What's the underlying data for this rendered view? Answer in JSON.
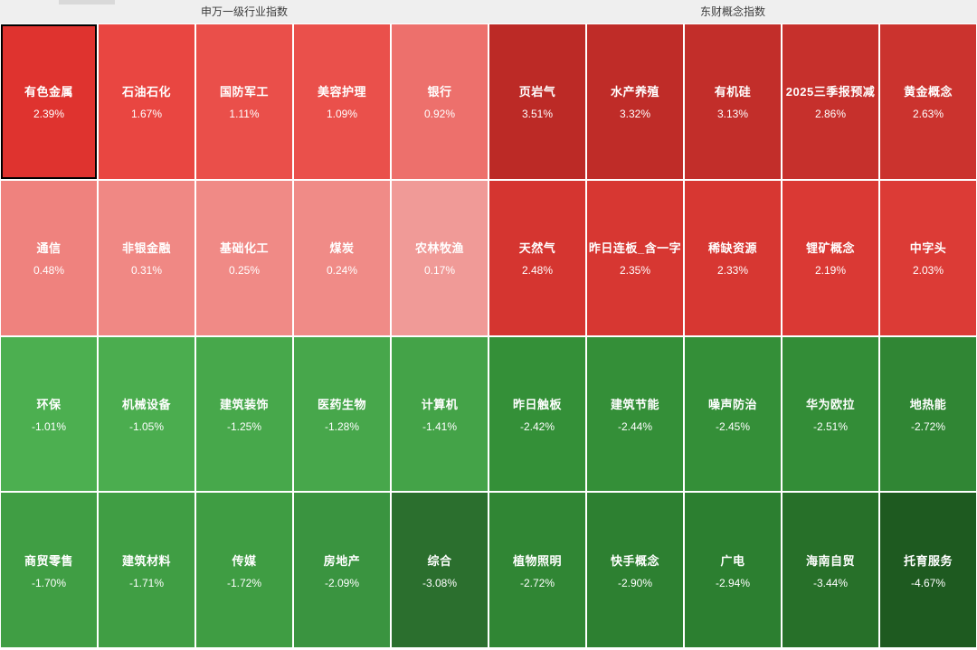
{
  "page": {
    "background": "#ffffff",
    "header_background": "#efefef",
    "header_text_color": "#3c3c3c",
    "positive_accent": "#df332f",
    "negative_accent": "#2b6f2e",
    "selected_cell_border": "#000000"
  },
  "sections": [
    {
      "title": "申万一级行业指数"
    },
    {
      "title": "东财概念指数"
    }
  ],
  "grid": {
    "columns": 10,
    "rows": [
      [
        {
          "label": "有色金属",
          "change": "2.39%",
          "color": "#df332f",
          "selected": true
        },
        {
          "label": "石油石化",
          "change": "1.67%",
          "color": "#e94641",
          "selected": false
        },
        {
          "label": "国防军工",
          "change": "1.11%",
          "color": "#ea4f4a",
          "selected": false
        },
        {
          "label": "美容护理",
          "change": "1.09%",
          "color": "#ea504b",
          "selected": false
        },
        {
          "label": "银行",
          "change": "0.92%",
          "color": "#ed706c",
          "selected": false
        },
        {
          "label": "页岩气",
          "change": "3.51%",
          "color": "#bc2a26",
          "selected": false
        },
        {
          "label": "水产养殖",
          "change": "3.32%",
          "color": "#bf2c28",
          "selected": false
        },
        {
          "label": "有机硅",
          "change": "3.13%",
          "color": "#c22e2a",
          "selected": false
        },
        {
          "label": "2025三季报预减",
          "change": "2.86%",
          "color": "#c6302c",
          "selected": false
        },
        {
          "label": "黄金概念",
          "change": "2.63%",
          "color": "#cb332e",
          "selected": false
        }
      ],
      [
        {
          "label": "通信",
          "change": "0.48%",
          "color": "#ef827e",
          "selected": false
        },
        {
          "label": "非银金融",
          "change": "0.31%",
          "color": "#f08884",
          "selected": false
        },
        {
          "label": "基础化工",
          "change": "0.25%",
          "color": "#f08a86",
          "selected": false
        },
        {
          "label": "煤炭",
          "change": "0.24%",
          "color": "#f08b87",
          "selected": false
        },
        {
          "label": "农林牧渔",
          "change": "0.17%",
          "color": "#f09a97",
          "selected": false
        },
        {
          "label": "天然气",
          "change": "2.48%",
          "color": "#d53530",
          "selected": false
        },
        {
          "label": "昨日连板_含一字",
          "change": "2.35%",
          "color": "#d73732",
          "selected": false
        },
        {
          "label": "稀缺资源",
          "change": "2.33%",
          "color": "#d73732",
          "selected": false
        },
        {
          "label": "锂矿概念",
          "change": "2.19%",
          "color": "#da3934",
          "selected": false
        },
        {
          "label": "中字头",
          "change": "2.03%",
          "color": "#dc3b36",
          "selected": false
        }
      ],
      [
        {
          "label": "环保",
          "change": "-1.01%",
          "color": "#4caf50",
          "selected": false
        },
        {
          "label": "机械设备",
          "change": "-1.05%",
          "color": "#4bad4f",
          "selected": false
        },
        {
          "label": "建筑装饰",
          "change": "-1.25%",
          "color": "#47a84b",
          "selected": false
        },
        {
          "label": "医药生物",
          "change": "-1.28%",
          "color": "#47a74b",
          "selected": false
        },
        {
          "label": "计算机",
          "change": "-1.41%",
          "color": "#44a348",
          "selected": false
        },
        {
          "label": "昨日触板",
          "change": "-2.42%",
          "color": "#349038",
          "selected": false
        },
        {
          "label": "建筑节能",
          "change": "-2.44%",
          "color": "#348f38",
          "selected": false
        },
        {
          "label": "噪声防治",
          "change": "-2.45%",
          "color": "#348f38",
          "selected": false
        },
        {
          "label": "华为欧拉",
          "change": "-2.51%",
          "color": "#338d37",
          "selected": false
        },
        {
          "label": "地热能",
          "change": "-2.72%",
          "color": "#308634",
          "selected": false
        }
      ],
      [
        {
          "label": "商贸零售",
          "change": "-1.70%",
          "color": "#409e44",
          "selected": false
        },
        {
          "label": "建筑材料",
          "change": "-1.71%",
          "color": "#409e44",
          "selected": false
        },
        {
          "label": "传媒",
          "change": "-1.72%",
          "color": "#3f9d43",
          "selected": false
        },
        {
          "label": "房地产",
          "change": "-2.09%",
          "color": "#3a9440",
          "selected": false
        },
        {
          "label": "综合",
          "change": "-3.08%",
          "color": "#2b6f2e",
          "selected": false
        },
        {
          "label": "植物照明",
          "change": "-2.72%",
          "color": "#308634",
          "selected": false
        },
        {
          "label": "快手概念",
          "change": "-2.90%",
          "color": "#2d8031",
          "selected": false
        },
        {
          "label": "广电",
          "change": "-2.94%",
          "color": "#2c7f30",
          "selected": false
        },
        {
          "label": "海南自贸",
          "change": "-3.44%",
          "color": "#277029",
          "selected": false
        },
        {
          "label": "托育服务",
          "change": "-4.67%",
          "color": "#1e5a20",
          "selected": false
        }
      ]
    ]
  },
  "chart_data": [
    {
      "type": "heatmap",
      "title": "申万一级行业指数",
      "categories": [
        "有色金属",
        "石油石化",
        "国防军工",
        "美容护理",
        "银行",
        "通信",
        "非银金融",
        "基础化工",
        "煤炭",
        "农林牧渔",
        "环保",
        "机械设备",
        "建筑装饰",
        "医药生物",
        "计算机",
        "商贸零售",
        "建筑材料",
        "传媒",
        "房地产",
        "综合"
      ],
      "values": [
        2.39,
        1.67,
        1.11,
        1.09,
        0.92,
        0.48,
        0.31,
        0.25,
        0.24,
        0.17,
        -1.01,
        -1.05,
        -1.25,
        -1.28,
        -1.41,
        -1.7,
        -1.71,
        -1.72,
        -2.09,
        -3.08
      ],
      "value_unit": "%",
      "layout": "5 columns x 4 rows, sorted descending; red=gain, green=loss"
    },
    {
      "type": "heatmap",
      "title": "东财概念指数",
      "categories": [
        "页岩气",
        "水产养殖",
        "有机硅",
        "2025三季报预减",
        "黄金概念",
        "天然气",
        "昨日连板_含一字",
        "稀缺资源",
        "锂矿概念",
        "中字头",
        "昨日触板",
        "建筑节能",
        "噪声防治",
        "华为欧拉",
        "地热能",
        "植物照明",
        "快手概念",
        "广电",
        "海南自贸",
        "托育服务"
      ],
      "values": [
        3.51,
        3.32,
        3.13,
        2.86,
        2.63,
        2.48,
        2.35,
        2.33,
        2.19,
        2.03,
        -2.42,
        -2.44,
        -2.45,
        -2.51,
        -2.72,
        -2.72,
        -2.9,
        -2.94,
        -3.44,
        -4.67
      ],
      "value_unit": "%",
      "layout": "5 columns x 4 rows, sorted descending; red=gain, green=loss"
    }
  ]
}
